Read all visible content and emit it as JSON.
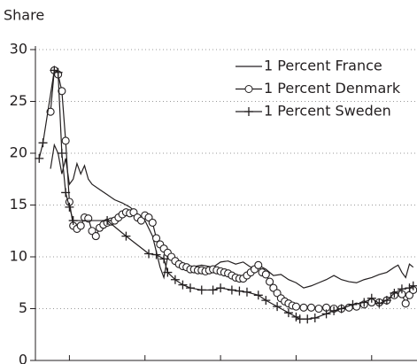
{
  "chart_data": {
    "type": "line",
    "y_label": "Share",
    "xlim": [
      1911,
      2012
    ],
    "xticks": [
      1920,
      1940,
      1960,
      1980,
      2000
    ],
    "ylim": [
      0,
      30
    ],
    "yticks": [
      0,
      5,
      10,
      15,
      20,
      25,
      30
    ],
    "grid": true,
    "legend": "upper right",
    "series": [
      {
        "name": "1 Percent France",
        "color": "#231f20",
        "marker": "none",
        "x": [
          1915,
          1916,
          1917,
          1918,
          1919,
          1920,
          1921,
          1922,
          1923,
          1924,
          1925,
          1926,
          1928,
          1930,
          1932,
          1934,
          1936,
          1937,
          1938,
          1940,
          1942,
          1944,
          1945,
          1946,
          1948,
          1950,
          1952,
          1955,
          1958,
          1960,
          1962,
          1964,
          1966,
          1968,
          1970,
          1972,
          1974,
          1976,
          1978,
          1980,
          1982,
          1984,
          1986,
          1988,
          1990,
          1992,
          1994,
          1996,
          1998,
          2000,
          2002,
          2004,
          2006,
          2007,
          2008,
          2009,
          2010,
          2011
        ],
        "values": [
          18.5,
          20.8,
          20,
          18,
          19.5,
          17,
          17.5,
          19,
          18,
          18.8,
          17.5,
          17,
          16.5,
          16,
          15.5,
          15.2,
          14.8,
          14.5,
          14,
          13.5,
          12,
          9,
          8,
          10,
          9.3,
          9,
          9,
          9.2,
          9,
          9.5,
          9.6,
          9.3,
          9.5,
          9,
          9.2,
          8.8,
          8.2,
          8.3,
          7.8,
          7.5,
          7,
          7.2,
          7.5,
          7.8,
          8.2,
          7.8,
          7.6,
          7.5,
          7.8,
          8,
          8.3,
          8.5,
          9,
          9.2,
          8.5,
          8,
          9.3,
          9
        ]
      },
      {
        "name": "1 Percent Denmark",
        "color": "#231f20",
        "marker": "circle",
        "x": [
          1915,
          1916,
          1917,
          1918,
          1919,
          1920,
          1921,
          1922,
          1923,
          1924,
          1925,
          1926,
          1927,
          1928,
          1929,
          1930,
          1931,
          1932,
          1933,
          1934,
          1935,
          1936,
          1937,
          1938,
          1939,
          1940,
          1941,
          1942,
          1943,
          1944,
          1945,
          1946,
          1947,
          1948,
          1949,
          1950,
          1951,
          1952,
          1953,
          1954,
          1955,
          1956,
          1957,
          1958,
          1959,
          1960,
          1961,
          1962,
          1963,
          1964,
          1965,
          1966,
          1967,
          1968,
          1969,
          1970,
          1971,
          1972,
          1973,
          1974,
          1975,
          1976,
          1977,
          1978,
          1979,
          1980,
          1982,
          1984,
          1986,
          1988,
          1990,
          1992,
          1994,
          1996,
          1998,
          2000,
          2002,
          2004,
          2006,
          2008,
          2009,
          2010,
          2011
        ],
        "values": [
          24,
          28,
          27.6,
          26,
          21.2,
          15.3,
          13,
          12.7,
          13,
          13.8,
          13.7,
          12.5,
          12,
          12.8,
          13.1,
          13.3,
          13.4,
          13.5,
          13.8,
          14.1,
          14.3,
          14.2,
          14.3,
          13.8,
          13.5,
          14,
          13.8,
          13.3,
          11.8,
          11.2,
          10.8,
          10.4,
          10,
          9.6,
          9.3,
          9.1,
          9,
          8.8,
          8.8,
          8.7,
          8.7,
          8.6,
          8.7,
          8.8,
          8.7,
          8.6,
          8.5,
          8.4,
          8.2,
          8,
          7.9,
          7.9,
          8.2,
          8.5,
          8.8,
          9.2,
          8.5,
          8.3,
          7.6,
          7,
          6.5,
          6,
          5.7,
          5.5,
          5.3,
          5.2,
          5.1,
          5.1,
          5,
          5.1,
          5,
          5,
          5.1,
          5.2,
          5.4,
          5.6,
          5.6,
          5.8,
          6.3,
          6.4,
          5.5,
          6.3,
          6.8
        ]
      },
      {
        "name": "1 Percent Sweden",
        "color": "#231f20",
        "marker": "plus",
        "x": [
          1912,
          1913,
          1916,
          1917,
          1918,
          1919,
          1920,
          1921,
          1930,
          1935,
          1941,
          1943,
          1945,
          1946,
          1948,
          1950,
          1952,
          1955,
          1958,
          1960,
          1963,
          1965,
          1967,
          1970,
          1972,
          1975,
          1978,
          1980,
          1981,
          1983,
          1985,
          1988,
          1990,
          1992,
          1995,
          1998,
          2000,
          2002,
          2004,
          2006,
          2008,
          2010,
          2011
        ],
        "values": [
          19.5,
          21,
          28,
          27.8,
          20,
          16.2,
          14.8,
          13.5,
          13.5,
          12,
          10.3,
          10.2,
          9.8,
          8.5,
          7.8,
          7.3,
          7,
          6.8,
          6.8,
          7,
          6.8,
          6.7,
          6.6,
          6.3,
          5.8,
          5.2,
          4.6,
          4.2,
          4,
          4,
          4.1,
          4.5,
          4.8,
          5,
          5.4,
          5.6,
          6,
          5.5,
          5.8,
          6.5,
          6.9,
          7,
          7.2
        ]
      }
    ]
  }
}
